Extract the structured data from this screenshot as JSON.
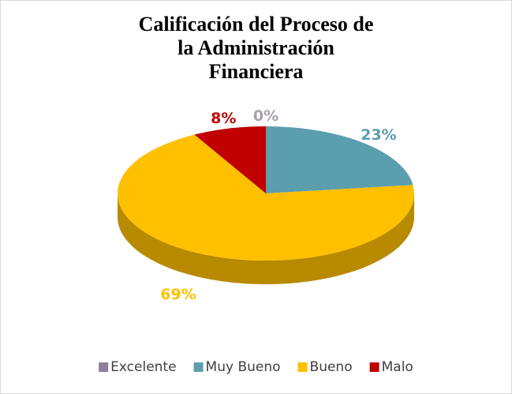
{
  "chart_data": {
    "type": "pie",
    "title": "Calificación del Proceso de la Administración Financiera",
    "categories": [
      "Excelente",
      "Muy Bueno",
      "Bueno",
      "Malo"
    ],
    "values": [
      0,
      23,
      69,
      8
    ],
    "value_labels": [
      "0%",
      "23%",
      "69%",
      "8%"
    ],
    "colors": [
      "#8d7f9b",
      "#5b9ead",
      "#ffc000",
      "#c00000"
    ],
    "legend": "bottom"
  }
}
